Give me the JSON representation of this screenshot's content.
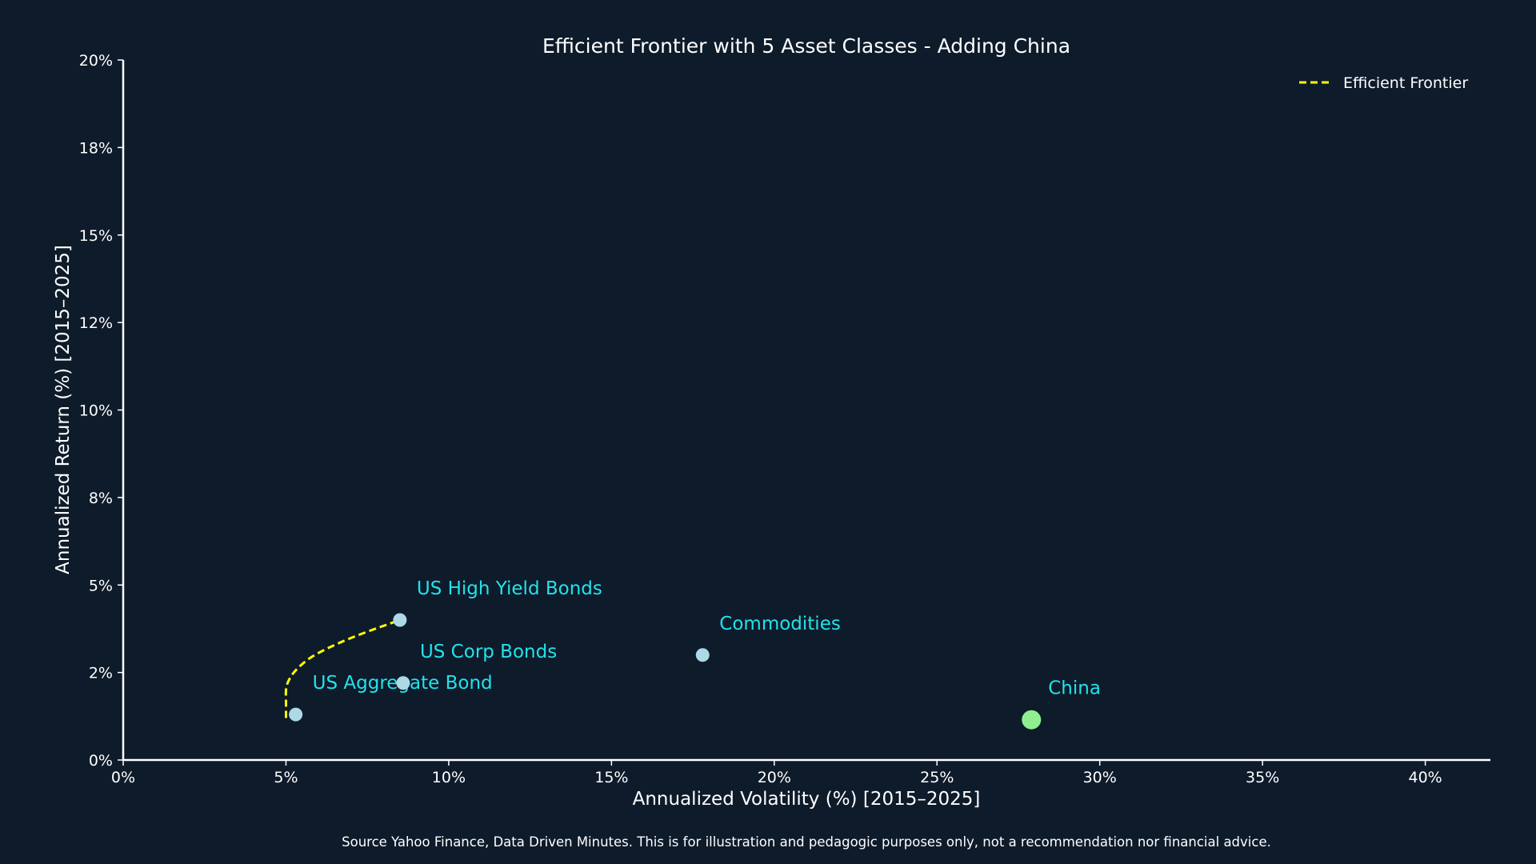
{
  "chart_data": {
    "type": "scatter",
    "title": "Efficient Frontier with 5 Asset Classes - Adding China",
    "xlabel": "Annualized Volatility (%) [2015–2025]",
    "ylabel": "Annualized Return (%) [2015–2025]",
    "xlim": [
      0,
      42
    ],
    "ylim": [
      0,
      20
    ],
    "x_ticks": [
      0,
      5,
      10,
      15,
      20,
      25,
      30,
      35,
      40
    ],
    "x_tick_labels": [
      "0%",
      "5%",
      "10%",
      "15%",
      "20%",
      "25%",
      "30%",
      "35%",
      "40%"
    ],
    "y_ticks": [
      0,
      2.5,
      5,
      7.5,
      10,
      12.5,
      15,
      17.5,
      20
    ],
    "y_tick_labels": [
      "0%",
      "2%",
      "5%",
      "8%",
      "10%",
      "12%",
      "15%",
      "18%",
      "20%"
    ],
    "grid": false,
    "legend": {
      "placement": "top-right",
      "entries": [
        "Efficient Frontier"
      ]
    },
    "points": [
      {
        "label": "US Aggregate Bond",
        "x": 5.3,
        "y": 1.3,
        "color": "#add8e6"
      },
      {
        "label": "US Corp Bonds",
        "x": 8.6,
        "y": 2.2,
        "color": "#add8e6"
      },
      {
        "label": "US High Yield Bonds",
        "x": 8.5,
        "y": 4.0,
        "color": "#add8e6"
      },
      {
        "label": "Commodities",
        "x": 17.8,
        "y": 3.0,
        "color": "#add8e6"
      },
      {
        "label": "China",
        "x": 27.9,
        "y": 1.15,
        "color": "#90ee90",
        "highlighted": true
      }
    ],
    "series": [
      {
        "name": "Efficient Frontier",
        "style": "dashed",
        "color": "#ffff00",
        "x": [
          5.0,
          5.0,
          5.0,
          5.05,
          5.2,
          5.45,
          5.8,
          6.3,
          6.9,
          7.6,
          8.2,
          8.5
        ],
        "y": [
          1.2,
          1.6,
          2.0,
          2.2,
          2.45,
          2.7,
          2.95,
          3.2,
          3.45,
          3.7,
          3.9,
          4.0
        ]
      }
    ],
    "colors": {
      "background": "#0e1b2b",
      "label": "#22e3ea",
      "axis": "#ffffff"
    }
  },
  "footer": {
    "source": "Source Yahoo Finance, Data Driven Minutes. This is for illustration and pedagogic purposes only, not a recommendation nor financial advice."
  }
}
